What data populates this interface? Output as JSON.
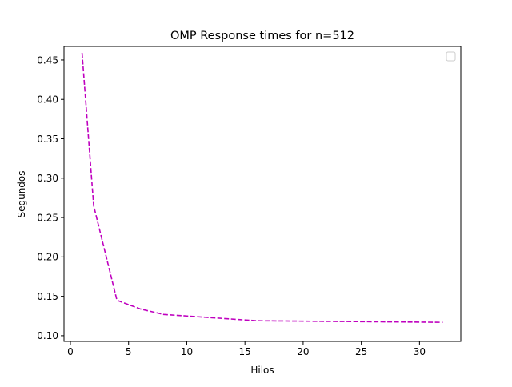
{
  "chart_data": {
    "type": "line",
    "title": "OMP Response times for n=512",
    "xlabel": "Hilos",
    "ylabel": "Segundos",
    "xlim": [
      -0.55,
      33.55
    ],
    "ylim": [
      0.0928,
      0.4672
    ],
    "xticks": [
      0,
      5,
      10,
      15,
      20,
      25,
      30
    ],
    "yticks": [
      0.1,
      0.15,
      0.2,
      0.25,
      0.3,
      0.35,
      0.4,
      0.45
    ],
    "xtick_labels": [
      "0",
      "5",
      "10",
      "15",
      "20",
      "25",
      "30"
    ],
    "ytick_labels": [
      "0.10",
      "0.15",
      "0.20",
      "0.25",
      "0.30",
      "0.35",
      "0.40",
      "0.45"
    ],
    "grid": false,
    "legend": "top-right (empty)",
    "series": [
      {
        "color": "#bf00bf",
        "linestyle": "dashed",
        "x": [
          1,
          2,
          4,
          6,
          8,
          16,
          32
        ],
        "y": [
          0.459,
          0.265,
          0.145,
          0.134,
          0.127,
          0.119,
          0.117
        ]
      }
    ]
  }
}
